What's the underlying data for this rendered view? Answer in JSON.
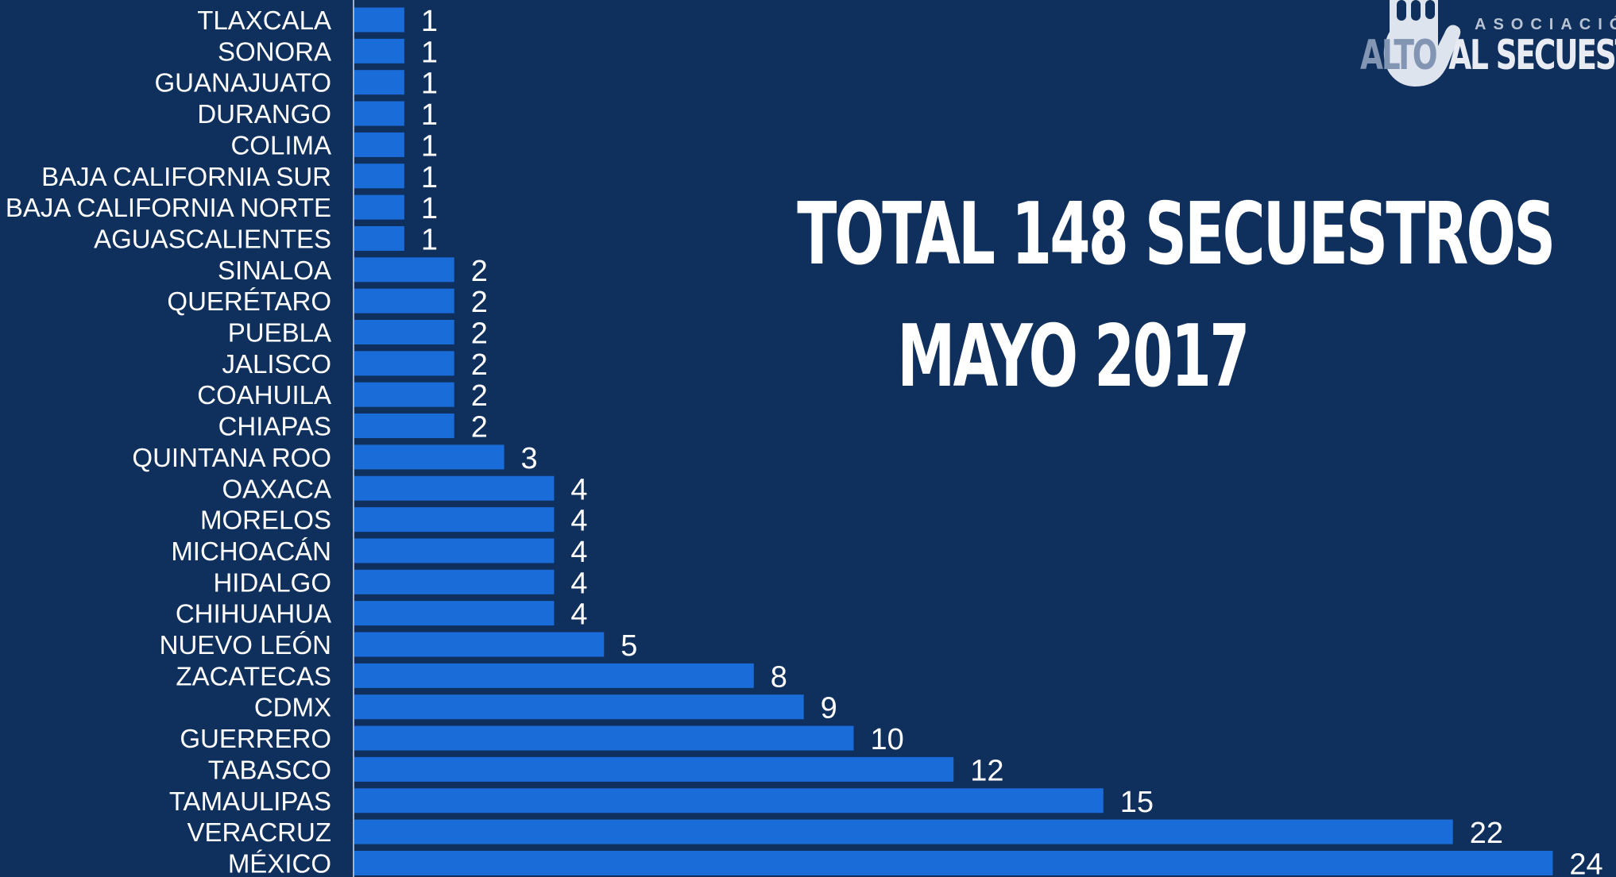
{
  "headline": {
    "line1": "TOTAL 148 SECUESTROS",
    "line2": "MAYO 2017"
  },
  "logo": {
    "top_text": "ASOCIACIÓ",
    "alto": "ALTO",
    "rest": "AL SECUESTRO",
    "icon": "hand-icon"
  },
  "colors": {
    "background": "#0f2f5c",
    "bar": "#1a6dd8",
    "text": "#ffffff",
    "axis": "#9fb3cc"
  },
  "chart_data": {
    "type": "bar",
    "orientation": "horizontal",
    "categories": [
      "TLAXCALA",
      "SONORA",
      "GUANAJUATO",
      "DURANGO",
      "COLIMA",
      "BAJA CALIFORNIA SUR",
      "BAJA CALIFORNIA NORTE",
      "AGUASCALIENTES",
      "SINALOA",
      "QUERÉTARO",
      "PUEBLA",
      "JALISCO",
      "COAHUILA",
      "CHIAPAS",
      "QUINTANA ROO",
      "OAXACA",
      "MORELOS",
      "MICHOACÁN",
      "HIDALGO",
      "CHIHUAHUA",
      "NUEVO LEÓN",
      "ZACATECAS",
      "CDMX",
      "GUERRERO",
      "TABASCO",
      "TAMAULIPAS",
      "VERACRUZ",
      "MÉXICO"
    ],
    "values": [
      1,
      1,
      1,
      1,
      1,
      1,
      1,
      1,
      2,
      2,
      2,
      2,
      2,
      2,
      3,
      4,
      4,
      4,
      4,
      4,
      5,
      8,
      9,
      10,
      12,
      15,
      22,
      24
    ],
    "data_labels": true,
    "xlim": [
      0,
      24
    ],
    "grid": false,
    "legend": "none"
  }
}
